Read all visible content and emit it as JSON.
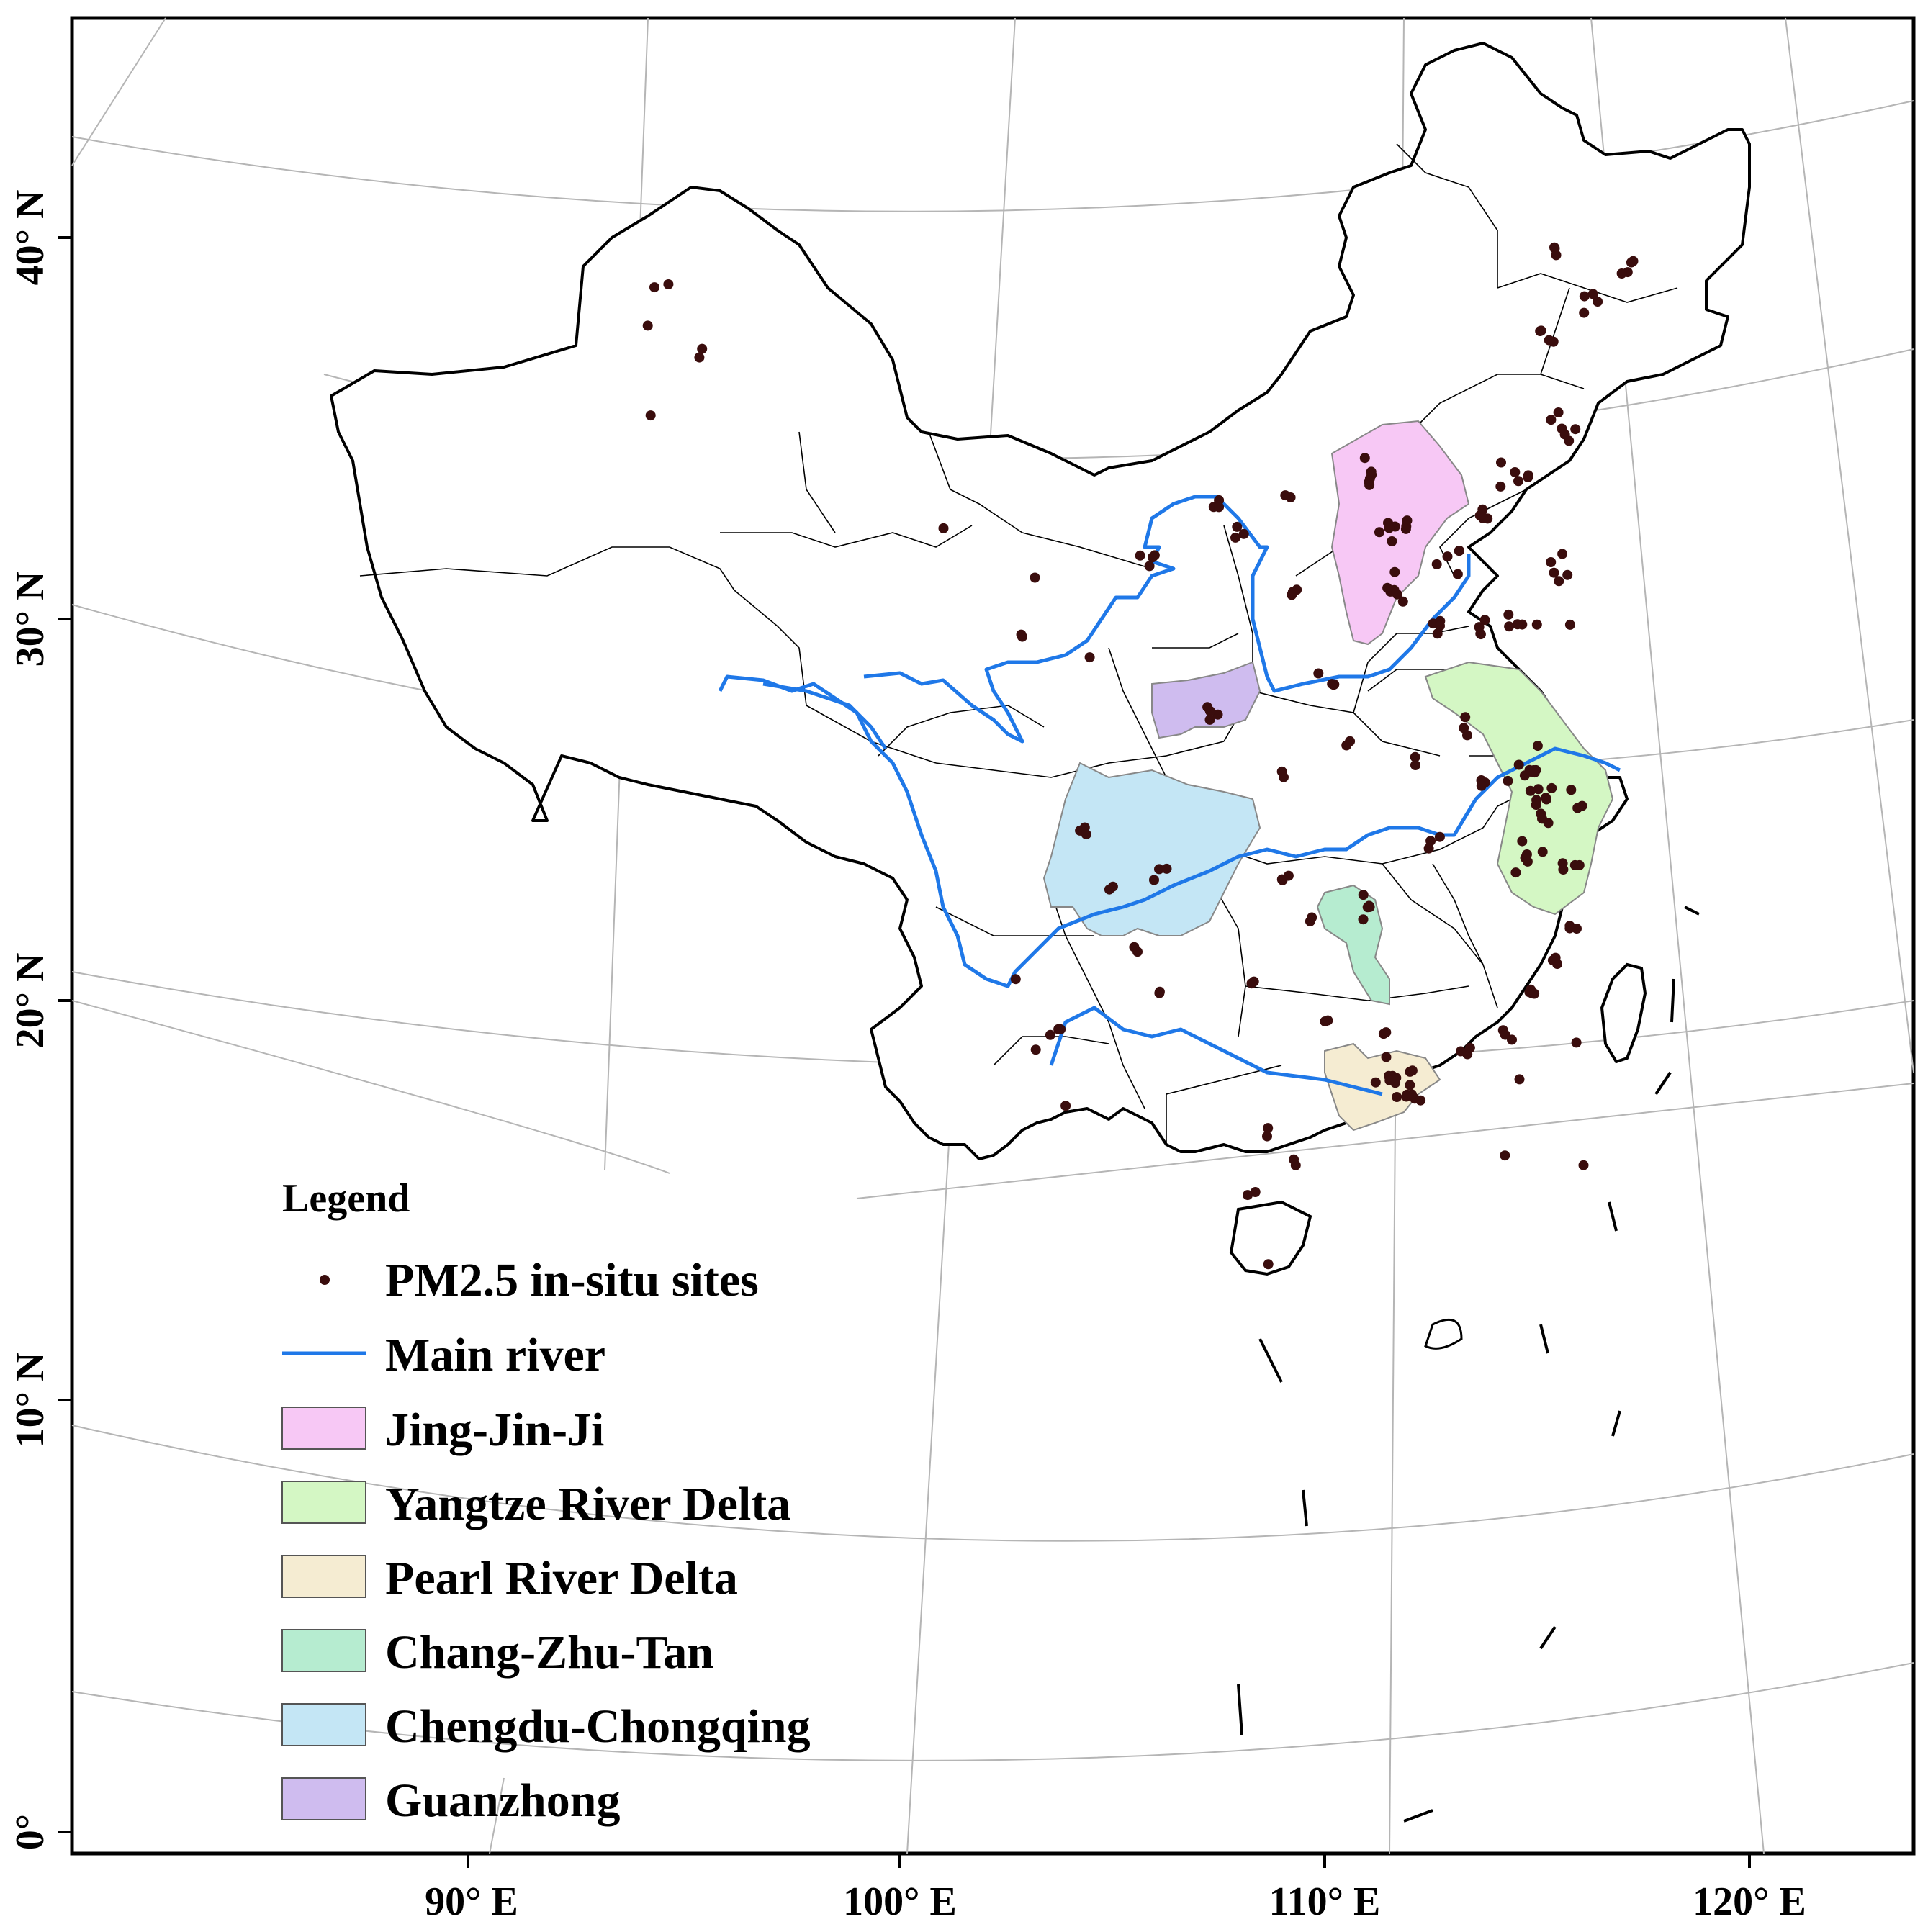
{
  "map": {
    "axes": {
      "lat_labels": [
        "40° N",
        "30° N",
        "20° N",
        "10° N",
        "0°"
      ],
      "lon_labels": [
        "90° E",
        "100° E",
        "110° E",
        "120° E"
      ]
    },
    "legend": {
      "title": "Legend",
      "items": [
        {
          "label": "PM2.5 in-situ sites",
          "kind": "point",
          "color": "#3a0d0d"
        },
        {
          "label": "Main river",
          "kind": "line",
          "color": "#1f78e8"
        },
        {
          "label": "Jing-Jin-Ji",
          "kind": "fill",
          "color": "#f7c8f5"
        },
        {
          "label": "Yangtze River Delta",
          "kind": "fill",
          "color": "#d4f7c4"
        },
        {
          "label": "Pearl River Delta",
          "kind": "fill",
          "color": "#f5ecd2"
        },
        {
          "label": "Chang-Zhu-Tan",
          "kind": "fill",
          "color": "#b6ecd0"
        },
        {
          "label": "Chengdu-Chongqing",
          "kind": "fill",
          "color": "#c4e6f5"
        },
        {
          "label": "Guanzhong",
          "kind": "fill",
          "color": "#cfbcef"
        }
      ]
    },
    "regions": [
      {
        "name": "Jing-Jin-Ji",
        "color": "#f7c8f5"
      },
      {
        "name": "Yangtze River Delta",
        "color": "#d4f7c4"
      },
      {
        "name": "Pearl River Delta",
        "color": "#f5ecd2"
      },
      {
        "name": "Chang-Zhu-Tan",
        "color": "#b6ecd0"
      },
      {
        "name": "Chengdu-Chongqing",
        "color": "#c4e6f5"
      },
      {
        "name": "Guanzhong",
        "color": "#cfbcef"
      }
    ]
  }
}
